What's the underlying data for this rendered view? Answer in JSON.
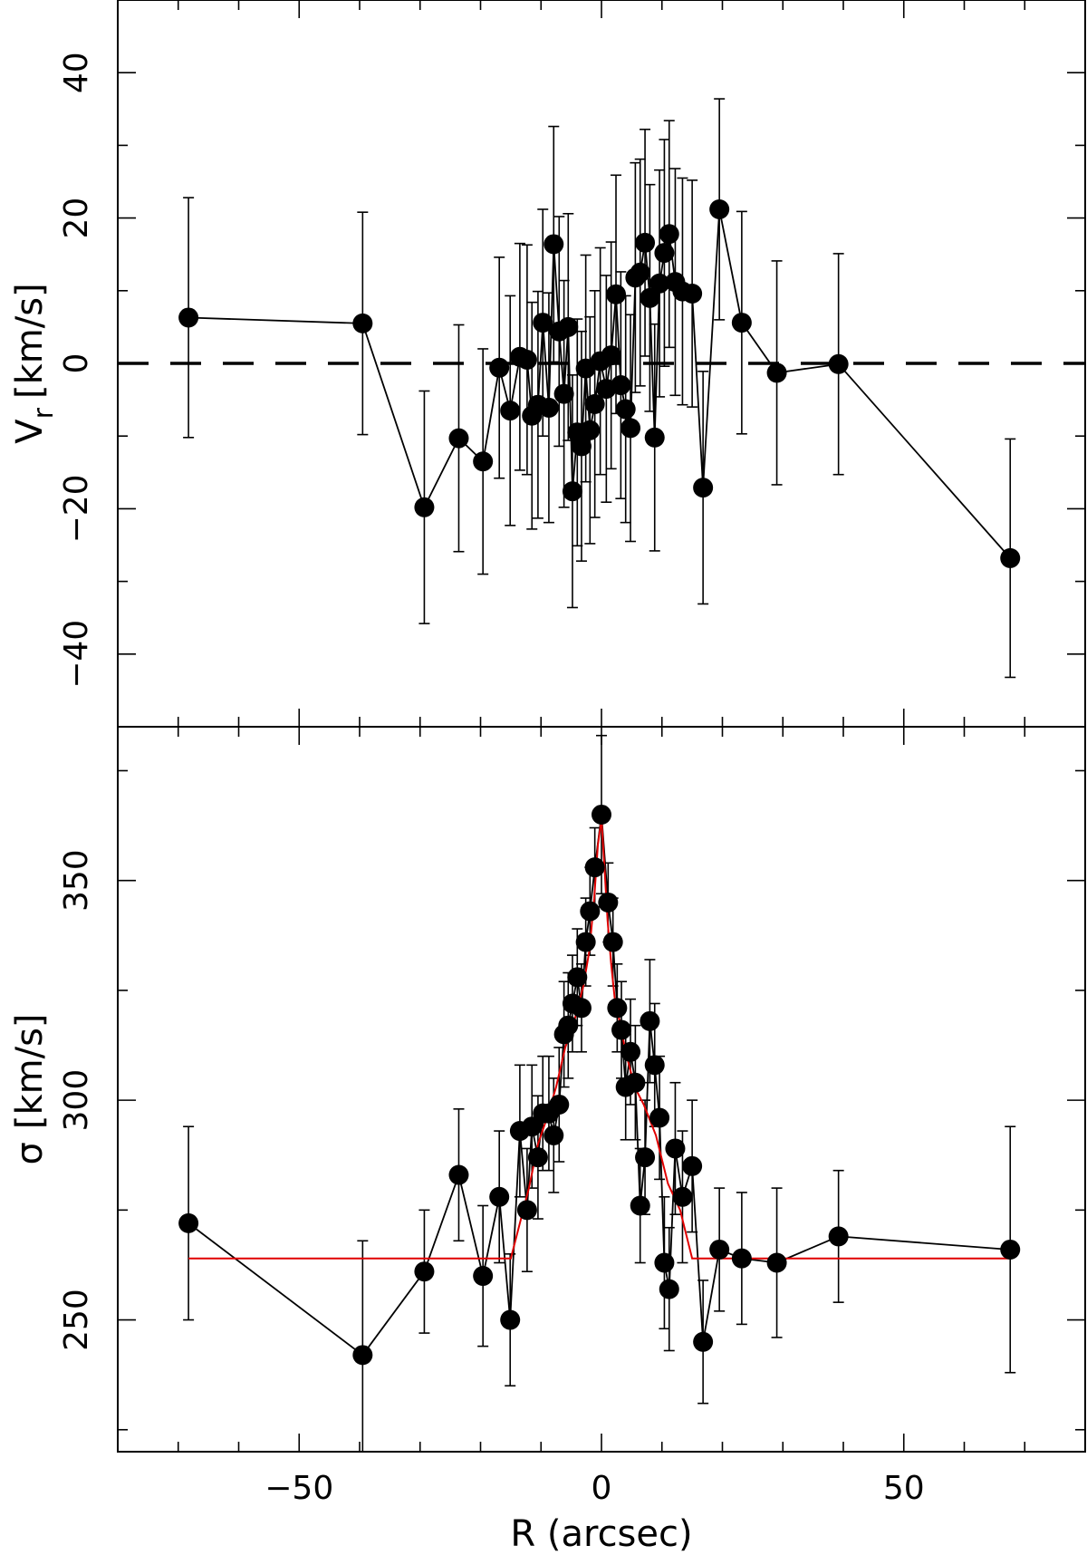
{
  "chart_data": [
    {
      "type": "scatter",
      "panel": "top",
      "xlabel": "R (arcsec)",
      "ylabel": "V_r [km/s]",
      "ylabel_main": "V",
      "ylabel_sub": "r",
      "ylabel_units": "[km/s]",
      "xlim": [
        -80,
        80
      ],
      "ylim": [
        -50,
        50
      ],
      "xticks_major": [
        -50,
        0,
        50
      ],
      "yticks_major": [
        -40,
        -20,
        0,
        20,
        40
      ],
      "ytick_labels": [
        "−40",
        "−20",
        "0",
        "20",
        "40"
      ],
      "grid": false,
      "reference_line": {
        "y": 0,
        "style": "dashed"
      },
      "points": [
        {
          "x": -68.3,
          "y": 6.3,
          "err": 16.5
        },
        {
          "x": -39.5,
          "y": 5.5,
          "err": 15.3
        },
        {
          "x": -29.3,
          "y": -19.8,
          "err": 16.0
        },
        {
          "x": -23.6,
          "y": -10.3,
          "err": 15.6
        },
        {
          "x": -19.6,
          "y": -13.5,
          "err": 15.5
        },
        {
          "x": -16.9,
          "y": -0.6,
          "err": 15.2
        },
        {
          "x": -15.1,
          "y": -6.5,
          "err": 15.8
        },
        {
          "x": -13.5,
          "y": 0.9,
          "err": 15.6
        },
        {
          "x": -12.3,
          "y": 0.5,
          "err": 15.8
        },
        {
          "x": -11.5,
          "y": -7.2,
          "err": 15.6
        },
        {
          "x": -10.5,
          "y": -5.7,
          "err": 15.6
        },
        {
          "x": -9.7,
          "y": 5.6,
          "err": 15.6
        },
        {
          "x": -8.7,
          "y": -6.1,
          "err": 15.8
        },
        {
          "x": -7.9,
          "y": 16.4,
          "err": 16.2
        },
        {
          "x": -7.0,
          "y": 4.4,
          "err": 15.8
        },
        {
          "x": -6.2,
          "y": -4.2,
          "err": 15.6
        },
        {
          "x": -5.5,
          "y": 5.0,
          "err": 15.6
        },
        {
          "x": -4.8,
          "y": -17.6,
          "err": 16.0
        },
        {
          "x": -4.0,
          "y": -9.5,
          "err": 15.6
        },
        {
          "x": -3.3,
          "y": -11.4,
          "err": 15.8
        },
        {
          "x": -2.6,
          "y": -0.7,
          "err": 15.6
        },
        {
          "x": -1.9,
          "y": -9.2,
          "err": 15.6
        },
        {
          "x": -1.1,
          "y": -5.6,
          "err": 15.6
        },
        {
          "x": -0.2,
          "y": 0.3,
          "err": 15.6
        },
        {
          "x": 0.8,
          "y": -3.5,
          "err": 15.6
        },
        {
          "x": 1.6,
          "y": 1.1,
          "err": 15.6
        },
        {
          "x": 2.4,
          "y": 9.5,
          "err": 16.4
        },
        {
          "x": 3.2,
          "y": -3.0,
          "err": 15.6
        },
        {
          "x": 4.0,
          "y": -6.3,
          "err": 15.6
        },
        {
          "x": 4.8,
          "y": -8.9,
          "err": 15.6
        },
        {
          "x": 5.6,
          "y": 11.8,
          "err": 15.8
        },
        {
          "x": 6.4,
          "y": 12.5,
          "err": 15.6
        },
        {
          "x": 7.2,
          "y": 16.6,
          "err": 15.6
        },
        {
          "x": 8.0,
          "y": 9.0,
          "err": 15.6
        },
        {
          "x": 8.8,
          "y": -10.2,
          "err": 15.6
        },
        {
          "x": 9.6,
          "y": 11.0,
          "err": 15.6
        },
        {
          "x": 10.4,
          "y": 15.2,
          "err": 15.6
        },
        {
          "x": 11.2,
          "y": 17.8,
          "err": 15.6
        },
        {
          "x": 12.2,
          "y": 11.2,
          "err": 15.6
        },
        {
          "x": 13.4,
          "y": 9.9,
          "err": 15.6
        },
        {
          "x": 15.0,
          "y": 9.6,
          "err": 15.6
        },
        {
          "x": 16.8,
          "y": -17.1,
          "err": 16.0
        },
        {
          "x": 19.5,
          "y": 21.2,
          "err": 15.2
        },
        {
          "x": 23.2,
          "y": 5.6,
          "err": 15.3
        },
        {
          "x": 29.0,
          "y": -1.3,
          "err": 15.4
        },
        {
          "x": 39.2,
          "y": -0.1,
          "err": 15.2
        },
        {
          "x": 67.6,
          "y": -26.8,
          "err": 16.4
        }
      ]
    },
    {
      "type": "scatter",
      "panel": "bottom",
      "xlabel": "R (arcsec)",
      "ylabel": "σ [km/s]",
      "ylabel_units": "[km/s]",
      "ylabel_symbol": "σ",
      "xlim": [
        -80,
        80
      ],
      "ylim": [
        220,
        385
      ],
      "xticks_major": [
        -50,
        0,
        50
      ],
      "xtick_labels": [
        "−50",
        "0",
        "50"
      ],
      "yticks_major": [
        250,
        300,
        350
      ],
      "ytick_labels": [
        "250",
        "300",
        "350"
      ],
      "grid": false,
      "points": [
        {
          "x": -68.3,
          "y": 272,
          "err": 22
        },
        {
          "x": -39.5,
          "y": 242,
          "err": 26
        },
        {
          "x": -29.3,
          "y": 261,
          "err": 14
        },
        {
          "x": -23.6,
          "y": 283,
          "err": 15
        },
        {
          "x": -19.6,
          "y": 260,
          "err": 16
        },
        {
          "x": -16.9,
          "y": 278,
          "err": 15
        },
        {
          "x": -15.1,
          "y": 250,
          "err": 15
        },
        {
          "x": -13.5,
          "y": 293,
          "err": 15
        },
        {
          "x": -12.3,
          "y": 275,
          "err": 14
        },
        {
          "x": -11.5,
          "y": 294,
          "err": 14
        },
        {
          "x": -10.5,
          "y": 287,
          "err": 14
        },
        {
          "x": -9.7,
          "y": 297,
          "err": 13
        },
        {
          "x": -8.7,
          "y": 297,
          "err": 13
        },
        {
          "x": -7.9,
          "y": 292,
          "err": 13
        },
        {
          "x": -7.0,
          "y": 299,
          "err": 13
        },
        {
          "x": -6.2,
          "y": 315,
          "err": 12
        },
        {
          "x": -5.5,
          "y": 317,
          "err": 12
        },
        {
          "x": -4.8,
          "y": 322,
          "err": 11
        },
        {
          "x": -4.0,
          "y": 328,
          "err": 11
        },
        {
          "x": -3.3,
          "y": 321,
          "err": 10
        },
        {
          "x": -2.6,
          "y": 336,
          "err": 10
        },
        {
          "x": -1.9,
          "y": 343,
          "err": 10
        },
        {
          "x": -1.1,
          "y": 353,
          "err": 9
        },
        {
          "x": 0.0,
          "y": 365,
          "err": 18
        },
        {
          "x": 1.1,
          "y": 345,
          "err": 9
        },
        {
          "x": 1.9,
          "y": 336,
          "err": 10
        },
        {
          "x": 2.6,
          "y": 321,
          "err": 10
        },
        {
          "x": 3.3,
          "y": 316,
          "err": 11
        },
        {
          "x": 4.0,
          "y": 303,
          "err": 12
        },
        {
          "x": 4.8,
          "y": 311,
          "err": 12
        },
        {
          "x": 5.6,
          "y": 304,
          "err": 13
        },
        {
          "x": 6.4,
          "y": 276,
          "err": 13
        },
        {
          "x": 7.2,
          "y": 287,
          "err": 13
        },
        {
          "x": 8.0,
          "y": 318,
          "err": 14
        },
        {
          "x": 8.8,
          "y": 308,
          "err": 14
        },
        {
          "x": 9.6,
          "y": 296,
          "err": 14
        },
        {
          "x": 10.4,
          "y": 263,
          "err": 15
        },
        {
          "x": 11.2,
          "y": 257,
          "err": 14
        },
        {
          "x": 12.2,
          "y": 289,
          "err": 15
        },
        {
          "x": 13.4,
          "y": 278,
          "err": 15
        },
        {
          "x": 15.0,
          "y": 285,
          "err": 15
        },
        {
          "x": 16.8,
          "y": 245,
          "err": 14
        },
        {
          "x": 19.5,
          "y": 266,
          "err": 14
        },
        {
          "x": 23.2,
          "y": 264,
          "err": 15
        },
        {
          "x": 29.0,
          "y": 263,
          "err": 17
        },
        {
          "x": 39.2,
          "y": 269,
          "err": 15
        },
        {
          "x": 67.6,
          "y": 266,
          "err": 28
        }
      ],
      "model_curve": {
        "color": "#e00000",
        "x": [
          -68.3,
          -15.0,
          -13.5,
          -12.0,
          -10.5,
          -9.0,
          -7.5,
          -6.0,
          -4.5,
          -3.0,
          -2.0,
          -1.2,
          -0.6,
          0.0,
          0.5,
          1.0,
          1.6,
          2.2,
          3.0,
          4.0,
          5.5,
          7.0,
          9.0,
          11.0,
          13.0,
          15.0,
          67.6
        ],
        "y": [
          264,
          264,
          272,
          280,
          290,
          296,
          303,
          312,
          318,
          326,
          334,
          346,
          358,
          364,
          353,
          341,
          331,
          323,
          318,
          311,
          303,
          299,
          292,
          281,
          275,
          264,
          264
        ]
      }
    }
  ]
}
